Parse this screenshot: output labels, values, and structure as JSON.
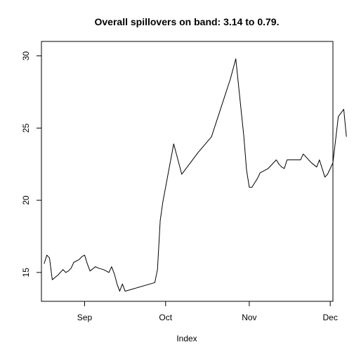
{
  "chart_data": {
    "type": "line",
    "title": "Overall spillovers on band: 3.14 to 0.79.",
    "xlabel": "Index",
    "ylabel": "",
    "xlim": [
      -16,
      92
    ],
    "ylim": [
      13.0,
      31.0
    ],
    "x_ticks": [
      {
        "x": 0,
        "label": "Sep"
      },
      {
        "x": 30,
        "label": "Oct"
      },
      {
        "x": 61,
        "label": "Nov"
      },
      {
        "x": 91,
        "label": "Dec"
      }
    ],
    "y_ticks": [
      15,
      20,
      25,
      30
    ],
    "grid": false,
    "series": [
      {
        "color": "#000000",
        "x": [
          -15,
          -14,
          -13,
          -12,
          -10,
          -8,
          -7,
          -6,
          -5,
          -4,
          -2,
          -1,
          0,
          1,
          2,
          4,
          5,
          7,
          9,
          10,
          11,
          12,
          13,
          14,
          15,
          26,
          27,
          28,
          29,
          33,
          36,
          40,
          42,
          47,
          54,
          56,
          59,
          60,
          61,
          62,
          63,
          64,
          65,
          68,
          71,
          72,
          73,
          74,
          75,
          78,
          79,
          80,
          81,
          82,
          83,
          84,
          86,
          87,
          89,
          90,
          91,
          92,
          94,
          96,
          97
        ],
        "values": [
          15.6,
          16.2,
          16.0,
          14.5,
          14.8,
          15.2,
          15.0,
          15.1,
          15.3,
          15.7,
          15.9,
          16.1,
          16.2,
          15.6,
          15.1,
          15.4,
          15.3,
          15.2,
          15.0,
          15.4,
          14.9,
          14.2,
          13.7,
          14.2,
          13.7,
          14.3,
          15.2,
          18.6,
          19.9,
          23.9,
          21.8,
          22.8,
          23.3,
          24.4,
          28.4,
          29.8,
          24.4,
          22.1,
          20.9,
          20.9,
          21.2,
          21.5,
          21.9,
          22.2,
          22.8,
          22.5,
          22.3,
          22.2,
          22.8,
          22.8,
          22.8,
          22.8,
          23.2,
          23.0,
          22.8,
          22.6,
          22.3,
          22.8,
          21.6,
          21.8,
          22.2,
          22.6,
          25.8,
          26.3,
          24.4
        ]
      }
    ]
  }
}
